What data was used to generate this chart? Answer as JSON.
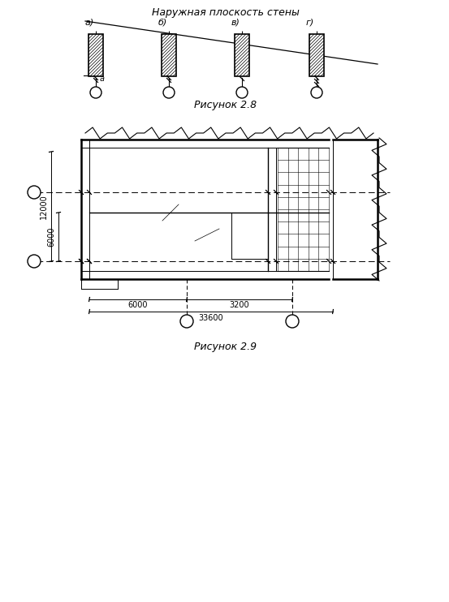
{
  "title_top": "Наружная плоскость стены",
  "fig28_label": "Рисунок 2.8",
  "fig29_label": "Рисунок 2.9",
  "subfig_labels": [
    "а)",
    "б)",
    "в)",
    "г)"
  ],
  "label_a": "а",
  "dim_12000": "12000",
  "dim_6000_v": "6000",
  "dim_6000_h": "6000",
  "dim_3200": "3200",
  "dim_33600": "33600",
  "line_color": "#000000",
  "bg_color": "#ffffff",
  "fontsize_small": 7,
  "fontsize_main": 8,
  "fontsize_caption": 9
}
